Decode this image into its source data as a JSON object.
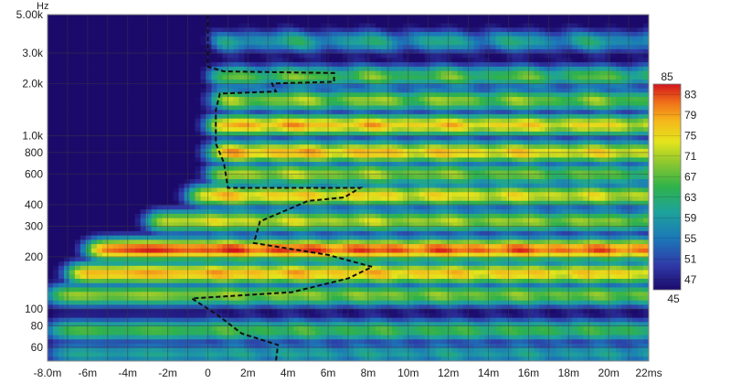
{
  "chart_data": {
    "type": "heatmap",
    "title": "",
    "xlabel": "",
    "ylabel": "",
    "y_unit": "Hz",
    "x_unit": "ms",
    "x_range_ms": [
      -8,
      22
    ],
    "y_range_hz": [
      50,
      5000
    ],
    "y_scale": "log",
    "x_ticks": [
      {
        "v": -8,
        "label": "-8.0m"
      },
      {
        "v": -6,
        "label": "-6m"
      },
      {
        "v": -4,
        "label": "-4m"
      },
      {
        "v": -2,
        "label": "-2m"
      },
      {
        "v": 0,
        "label": "0"
      },
      {
        "v": 2,
        "label": "2m"
      },
      {
        "v": 4,
        "label": "4m"
      },
      {
        "v": 6,
        "label": "6m"
      },
      {
        "v": 8,
        "label": "8m"
      },
      {
        "v": 10,
        "label": "10m"
      },
      {
        "v": 12,
        "label": "12m"
      },
      {
        "v": 14,
        "label": "14m"
      },
      {
        "v": 16,
        "label": "16m"
      },
      {
        "v": 18,
        "label": "18m"
      },
      {
        "v": 20,
        "label": "20m"
      },
      {
        "v": 22,
        "label": "22ms"
      }
    ],
    "y_ticks": [
      {
        "v": 5000,
        "label": "5.00k"
      },
      {
        "v": 3000,
        "label": "3.0k"
      },
      {
        "v": 2000,
        "label": "2.0k"
      },
      {
        "v": 1000,
        "label": "1.0k"
      },
      {
        "v": 800,
        "label": "800"
      },
      {
        "v": 600,
        "label": "600"
      },
      {
        "v": 400,
        "label": "400"
      },
      {
        "v": 300,
        "label": "300"
      },
      {
        "v": 200,
        "label": "200"
      },
      {
        "v": 100,
        "label": "100"
      },
      {
        "v": 80,
        "label": "80"
      },
      {
        "v": 60,
        "label": "60"
      }
    ],
    "colorbar": {
      "min": 45,
      "max": 85,
      "tick_labels": [
        "85",
        "83",
        "79",
        "75",
        "71",
        "67",
        "63",
        "59",
        "55",
        "51",
        "47",
        "45"
      ],
      "tick_values": [
        85,
        83,
        79,
        75,
        71,
        67,
        63,
        59,
        55,
        51,
        47,
        45
      ]
    },
    "bands": [
      {
        "hz": 3500,
        "level": 60,
        "start_ms": 0.2,
        "decay": 0.05,
        "ripple": 0.9
      },
      {
        "hz": 2200,
        "level": 67,
        "start_ms": 0.1,
        "decay": 0.08,
        "ripple": 0.8
      },
      {
        "hz": 1600,
        "level": 70,
        "start_ms": 0.1,
        "decay": 0.1,
        "ripple": 0.7
      },
      {
        "hz": 1150,
        "level": 79,
        "start_ms": 0.0,
        "decay": 0.22,
        "ripple": 0.5
      },
      {
        "hz": 800,
        "level": 79,
        "start_ms": 0.0,
        "decay": 0.2,
        "ripple": 0.5
      },
      {
        "hz": 600,
        "level": 72,
        "start_ms": 0.0,
        "decay": 0.25,
        "ripple": 0.5
      },
      {
        "hz": 450,
        "level": 77,
        "start_ms": -1.0,
        "decay": 0.18,
        "ripple": 0.4
      },
      {
        "hz": 320,
        "level": 74,
        "start_ms": -3.0,
        "decay": 0.2,
        "ripple": 0.4
      },
      {
        "hz": 220,
        "level": 84,
        "start_ms": -6.0,
        "decay": 0.08,
        "ripple": 0.3
      },
      {
        "hz": 160,
        "level": 79,
        "start_ms": -7.0,
        "decay": 0.1,
        "ripple": 0.3
      },
      {
        "hz": 120,
        "level": 70,
        "start_ms": -8.0,
        "decay": 0.06,
        "ripple": 0.3
      },
      {
        "hz": 75,
        "level": 66,
        "start_ms": -8.0,
        "decay": 0.04,
        "ripple": 0.3
      },
      {
        "hz": 55,
        "level": 60,
        "start_ms": -8.0,
        "decay": 0.03,
        "ripple": 0.3
      }
    ],
    "dashed_curve": [
      {
        "ms": 0.0,
        "hz": 5000
      },
      {
        "ms": 0.0,
        "hz": 2500
      },
      {
        "ms": 0.8,
        "hz": 2350
      },
      {
        "ms": 6.3,
        "hz": 2300
      },
      {
        "ms": 6.3,
        "hz": 2050
      },
      {
        "ms": 3.2,
        "hz": 2000
      },
      {
        "ms": 3.4,
        "hz": 1800
      },
      {
        "ms": 0.6,
        "hz": 1750
      },
      {
        "ms": 0.4,
        "hz": 1400
      },
      {
        "ms": 0.4,
        "hz": 900
      },
      {
        "ms": 0.8,
        "hz": 700
      },
      {
        "ms": 1.0,
        "hz": 500
      },
      {
        "ms": 7.6,
        "hz": 500
      },
      {
        "ms": 6.8,
        "hz": 440
      },
      {
        "ms": 5.0,
        "hz": 420
      },
      {
        "ms": 2.6,
        "hz": 320
      },
      {
        "ms": 2.3,
        "hz": 240
      },
      {
        "ms": 6.0,
        "hz": 205
      },
      {
        "ms": 8.2,
        "hz": 175
      },
      {
        "ms": 7.0,
        "hz": 150
      },
      {
        "ms": 4.2,
        "hz": 125
      },
      {
        "ms": -0.8,
        "hz": 115
      },
      {
        "ms": 0.5,
        "hz": 92
      },
      {
        "ms": 1.7,
        "hz": 72
      },
      {
        "ms": 3.5,
        "hz": 62
      },
      {
        "ms": 3.4,
        "hz": 50
      }
    ]
  }
}
